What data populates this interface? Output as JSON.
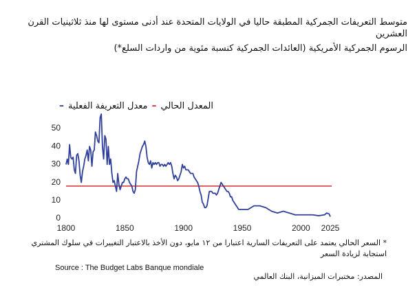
{
  "chart_data": {
    "type": "line",
    "title": "متوسط التعريفات الجمركية المطبقة حاليا في الولايات المتحدة عند أدنى مستوى لها منذ ثلاثينيات القرن العشرين",
    "subtitle": "الرسوم الجمركية الأمريكية (العائدات الجمركية كنسبة مئوية من واردات السلع*)",
    "x": [
      1800,
      1801,
      1802,
      1803,
      1804,
      1805,
      1806,
      1807,
      1808,
      1809,
      1810,
      1811,
      1812,
      1813,
      1814,
      1815,
      1816,
      1817,
      1818,
      1819,
      1820,
      1821,
      1822,
      1823,
      1824,
      1825,
      1826,
      1827,
      1828,
      1829,
      1830,
      1831,
      1832,
      1833,
      1834,
      1835,
      1836,
      1837,
      1838,
      1839,
      1840,
      1841,
      1842,
      1843,
      1844,
      1845,
      1846,
      1847,
      1848,
      1849,
      1850,
      1851,
      1852,
      1853,
      1854,
      1855,
      1856,
      1857,
      1858,
      1859,
      1860,
      1861,
      1862,
      1863,
      1864,
      1865,
      1866,
      1867,
      1868,
      1869,
      1870,
      1871,
      1872,
      1873,
      1874,
      1875,
      1876,
      1877,
      1878,
      1879,
      1880,
      1881,
      1882,
      1883,
      1884,
      1885,
      1886,
      1887,
      1888,
      1889,
      1890,
      1891,
      1892,
      1893,
      1894,
      1895,
      1896,
      1897,
      1898,
      1899,
      1900,
      1901,
      1902,
      1903,
      1904,
      1905,
      1906,
      1907,
      1908,
      1909,
      1910,
      1911,
      1912,
      1913,
      1914,
      1915,
      1916,
      1917,
      1918,
      1919,
      1920,
      1921,
      1922,
      1923,
      1924,
      1925,
      1926,
      1927,
      1928,
      1929,
      1930,
      1931,
      1932,
      1933,
      1934,
      1935,
      1936,
      1937,
      1938,
      1939,
      1940,
      1941,
      1942,
      1943,
      1944,
      1945,
      1946,
      1947,
      1948,
      1949,
      1950,
      1955,
      1960,
      1965,
      1970,
      1975,
      1980,
      1985,
      1990,
      1995,
      2000,
      2005,
      2010,
      2015,
      2020,
      2022,
      2024,
      2025
    ],
    "series": [
      {
        "name": "معدل التعريفة الفعلية",
        "color": "#2f3f9a",
        "values": [
          30,
          33,
          30,
          41,
          34,
          33,
          34,
          27,
          25,
          35,
          36,
          32,
          24,
          20,
          26,
          29,
          33,
          35,
          38,
          32,
          40,
          38,
          29,
          37,
          38,
          48,
          46,
          43,
          42,
          56,
          58,
          40,
          33,
          46,
          44,
          30,
          40,
          30,
          33,
          25,
          20,
          21,
          18,
          15,
          25,
          19,
          16,
          18,
          20,
          20,
          22,
          23,
          22,
          22,
          20,
          19,
          18,
          15,
          14,
          16,
          26,
          29,
          32,
          36,
          38,
          40,
          41,
          43,
          40,
          34,
          31,
          30,
          32,
          28,
          31,
          30,
          31,
          30,
          31,
          31,
          29,
          30,
          30,
          29,
          30,
          29,
          30,
          31,
          30,
          31,
          29,
          25,
          22,
          24,
          23,
          21,
          22,
          24,
          26,
          30,
          28,
          29,
          27,
          27,
          27,
          26,
          25,
          25,
          25,
          23,
          22,
          21,
          20,
          18,
          15,
          13,
          9,
          8,
          6,
          6,
          7,
          11,
          15,
          15,
          15,
          14,
          14,
          14,
          13,
          14,
          16,
          18,
          20,
          19,
          18,
          17,
          16,
          15,
          15,
          14,
          12,
          12,
          10,
          9,
          8,
          7,
          6,
          5,
          5,
          5,
          5,
          5,
          7,
          7,
          6,
          4,
          3,
          4,
          3,
          2,
          2,
          2,
          2,
          1.5,
          2,
          3,
          2.5,
          1
        ]
      }
    ],
    "current_rate": {
      "name": "المعدل الحالي",
      "color": "#d62b2b",
      "value": 18
    },
    "xlim": [
      1800,
      2025
    ],
    "xticks": [
      1800,
      1850,
      1900,
      1950,
      2000,
      2025
    ],
    "ylim": [
      0,
      58
    ],
    "yticks": [
      0,
      10,
      20,
      30,
      40,
      50
    ],
    "grid": false,
    "footnote": "* السعر الحالي يعتمد على التعريفات السارية اعتبارا من ١٢ مايو، دون الأخذ بالاعتبار التغييرات في سلوك المشتري استجابة لزيادة السعر",
    "source": "Source : The Budget Labs Banque mondiale",
    "source_ar": "المصدر: مختبرات الميزانية، البنك العالمي"
  }
}
